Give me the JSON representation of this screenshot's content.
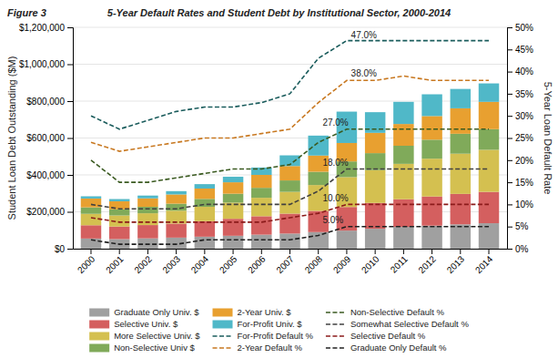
{
  "chart_data": {
    "type": "bar",
    "title": "5-Year Default Rates and Student Debt by Institutional Sector, 2000-2014",
    "subtitle": "Figure 3",
    "ylabel": "Student Loan Debt Outstanding ($M)",
    "y2label": "5-Year Loan Default Rate",
    "categories": [
      2000,
      2001,
      2002,
      2003,
      2004,
      2005,
      2006,
      2007,
      2008,
      2009,
      2010,
      2011,
      2012,
      2013,
      2014
    ],
    "stacked": true,
    "grid": true,
    "legend": "bottom",
    "series": [
      {
        "name": "Graduate Only Univ. $",
        "type": "bar",
        "color": "#a0a0a0",
        "values": [
          55000,
          52000,
          56000,
          60000,
          65000,
          70000,
          76000,
          82000,
          90000,
          98000,
          108000,
          118000,
          125000,
          132000,
          138000
        ]
      },
      {
        "name": "Selective Univ. $",
        "type": "bar",
        "color": "#d45f5f",
        "values": [
          72000,
          68000,
          72000,
          76000,
          84000,
          92000,
          100000,
          108000,
          115000,
          128000,
          140000,
          150000,
          158000,
          165000,
          170000
        ]
      },
      {
        "name": "More Selective Univ. $",
        "type": "bar",
        "color": "#d4c050",
        "values": [
          62000,
          60000,
          64000,
          70000,
          78000,
          88000,
          100000,
          118000,
          140000,
          162000,
          178000,
          192000,
          205000,
          218000,
          228000
        ]
      },
      {
        "name": "Non-Selective Univ $",
        "type": "bar",
        "color": "#80aa5a",
        "values": [
          35000,
          33000,
          35000,
          38000,
          43000,
          48000,
          54000,
          62000,
          72000,
          85000,
          92000,
          98000,
          103000,
          108000,
          112000
        ]
      },
      {
        "name": "2-Year Univ. $",
        "type": "bar",
        "color": "#e8a030",
        "values": [
          48000,
          44000,
          46000,
          50000,
          56000,
          62000,
          70000,
          78000,
          88000,
          100000,
          110000,
          118000,
          128000,
          138000,
          148000
        ]
      },
      {
        "name": "For-Profit Univ. $",
        "type": "bar",
        "color": "#50b8c8",
        "values": [
          12000,
          12000,
          15000,
          18000,
          24000,
          30000,
          40000,
          58000,
          108000,
          170000,
          112000,
          120000,
          118000,
          105000,
          100000
        ]
      },
      {
        "name": "For-Profit Default %",
        "type": "line",
        "axis": "y2",
        "line_style": "dashed",
        "color": "#1a5c5c",
        "values": [
          30,
          27,
          29,
          31,
          32,
          32,
          33,
          35,
          43,
          47,
          47,
          47,
          47,
          47,
          47
        ]
      },
      {
        "name": "2-Year Default %",
        "type": "line",
        "axis": "y2",
        "line_style": "dashed",
        "color": "#c87820",
        "values": [
          24,
          22,
          23,
          24,
          25,
          25,
          26,
          27,
          33,
          38,
          38,
          39,
          38,
          38,
          38
        ]
      },
      {
        "name": "Non-Selective Default %",
        "type": "line",
        "axis": "y2",
        "line_style": "dashed",
        "color": "#3a5a20",
        "values": [
          20,
          15,
          15,
          16,
          17,
          18,
          18,
          19,
          24,
          27,
          27,
          27,
          27,
          27,
          27
        ]
      },
      {
        "name": "Somewhat Selective Default %",
        "type": "line",
        "axis": "y2",
        "line_style": "dashed",
        "color": "#404040",
        "values": [
          10,
          9,
          9,
          9,
          10,
          10,
          10,
          10,
          13,
          18,
          18,
          18,
          18,
          18,
          18
        ]
      },
      {
        "name": "Selective Default %",
        "type": "line",
        "axis": "y2",
        "line_style": "dashed",
        "color": "#8b1a1a",
        "values": [
          7,
          6,
          6,
          6,
          6,
          6,
          6,
          7,
          8,
          10,
          10,
          10,
          10,
          10,
          10
        ]
      },
      {
        "name": "Graduate Only Default %",
        "type": "line",
        "axis": "y2",
        "line_style": "dashed",
        "color": "#202020",
        "values": [
          2,
          1,
          1,
          1,
          2,
          2,
          2,
          2,
          3,
          5,
          5,
          5,
          5,
          5,
          5
        ]
      }
    ],
    "annotations": [
      {
        "text": "47.0%",
        "x": 2009,
        "y": 47.5,
        "axis": "y2"
      },
      {
        "text": "38.0%",
        "x": 2009,
        "y": 38.8,
        "axis": "y2"
      },
      {
        "text": "27.0%",
        "x": 2008,
        "y": 27.8,
        "axis": "y2"
      },
      {
        "text": "18.0%",
        "x": 2008,
        "y": 18.8,
        "axis": "y2"
      },
      {
        "text": "10.0%",
        "x": 2008,
        "y": 10.8,
        "axis": "y2"
      },
      {
        "text": "5.0%",
        "x": 2008,
        "y": 5.8,
        "axis": "y2"
      }
    ],
    "ylim": [
      0,
      1200000
    ],
    "yticks": [
      {
        "value": 0,
        "label": "$0"
      },
      {
        "value": 200000,
        "label": "$200,000"
      },
      {
        "value": 400000,
        "label": "$400,000"
      },
      {
        "value": 600000,
        "label": "$600,000"
      },
      {
        "value": 800000,
        "label": "$800,000"
      },
      {
        "value": 1000000,
        "label": "$1,000,000"
      },
      {
        "value": 1200000,
        "label": "$1,200,000"
      }
    ],
    "y2lim": [
      0,
      50
    ],
    "y2ticks": [
      {
        "value": 0,
        "label": "0%"
      },
      {
        "value": 5,
        "label": "5%"
      },
      {
        "value": 10,
        "label": "10%"
      },
      {
        "value": 15,
        "label": "15%"
      },
      {
        "value": 20,
        "label": "20%"
      },
      {
        "value": 25,
        "label": "25%"
      },
      {
        "value": 30,
        "label": "30%"
      },
      {
        "value": 35,
        "label": "35%"
      },
      {
        "value": 40,
        "label": "40%"
      },
      {
        "value": 45,
        "label": "45%"
      },
      {
        "value": 50,
        "label": "50%"
      }
    ]
  }
}
